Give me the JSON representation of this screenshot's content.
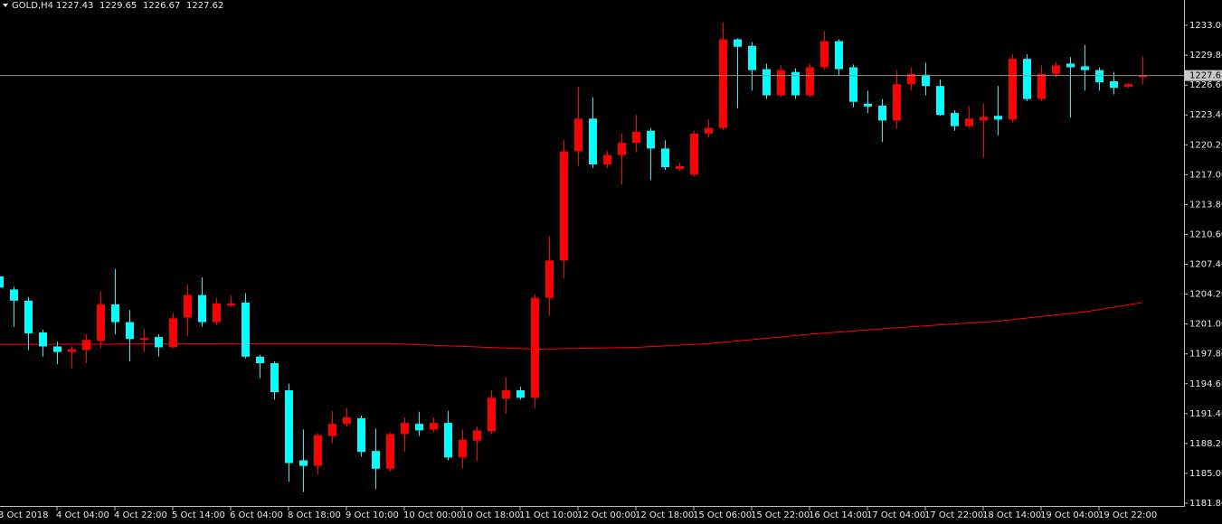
{
  "chart_data": {
    "type": "candlestick",
    "title": "GOLD,H4",
    "up_color": "#ff0000",
    "down_color": "#00ffff",
    "background": "#000000",
    "categories": [
      "3 Oct 2018",
      null,
      null,
      null,
      "4 Oct 04:00",
      null,
      null,
      null,
      "4 Oct 22:00",
      null,
      null,
      null,
      "5 Oct 14:00",
      null,
      null,
      null,
      "6 Oct 04:00",
      null,
      null,
      null,
      "8 Oct 18:00",
      null,
      null,
      null,
      "9 Oct 10:00",
      null,
      null,
      null,
      "10 Oct 00:00",
      null,
      null,
      null,
      "10 Oct 18:00",
      null,
      null,
      null,
      "11 Oct 10:00",
      null,
      null,
      null,
      "12 Oct 00:00",
      null,
      null,
      null,
      "12 Oct 18:00",
      null,
      null,
      null,
      "15 Oct 06:00",
      null,
      null,
      null,
      "15 Oct 22:00",
      null,
      null,
      null,
      "16 Oct 14:00",
      null,
      null,
      null,
      "17 Oct 04:00",
      null,
      null,
      null,
      "17 Oct 22:00",
      null,
      null,
      null,
      "18 Oct 14:00",
      null,
      null,
      null,
      "19 Oct 04:00",
      null,
      null,
      null,
      "19 Oct 22:00",
      null,
      null,
      null
    ],
    "open": [
      1206.1,
      1204.7,
      1203.5,
      1200.1,
      1198.6,
      1198.0,
      1198.2,
      1199.2,
      1203.1,
      1201.2,
      1199.3,
      1199.6,
      1198.5,
      1201.7,
      1204.1,
      1201.2,
      1203.0,
      1203.3,
      1197.5,
      1196.8,
      1193.9,
      1186.4,
      1185.8,
      1189.0,
      1190.3,
      1190.9,
      1187.4,
      1185.5,
      1189.2,
      1190.3,
      1189.7,
      1190.4,
      1186.7,
      1188.5,
      1189.5,
      1193.0,
      1193.9,
      1193.1,
      1203.8,
      1207.8,
      1219.5,
      1223.0,
      1218.1,
      1219.1,
      1220.4,
      1221.7,
      1219.8,
      1217.6,
      1217.0,
      1221.4,
      1222.0,
      1231.5,
      1230.8,
      1228.3,
      1225.5,
      1228.0,
      1225.5,
      1228.5,
      1231.3,
      1228.5,
      1224.6,
      1224.4,
      1222.8,
      1226.7,
      1227.7,
      1226.5,
      1223.6,
      1222.2,
      1222.8,
      1223.3,
      1222.9,
      1229.4,
      1225.1,
      1227.8,
      1228.9,
      1228.6,
      1228.2,
      1227.0,
      1226.4,
      1227.43
    ],
    "high": [
      1206.2,
      1205.0,
      1203.9,
      1200.4,
      1199.1,
      1198.6,
      1199.9,
      1204.5,
      1206.9,
      1202.5,
      1200.5,
      1199.9,
      1202.2,
      1205.2,
      1206.0,
      1203.8,
      1204.1,
      1204.3,
      1197.7,
      1197.0,
      1194.6,
      1189.7,
      1189.3,
      1191.7,
      1192.0,
      1191.2,
      1189.8,
      1189.4,
      1191.0,
      1191.6,
      1191.0,
      1191.7,
      1189.7,
      1190.0,
      1193.9,
      1195.3,
      1194.3,
      1204.2,
      1210.4,
      1220.7,
      1226.4,
      1225.3,
      1219.6,
      1221.4,
      1223.4,
      1222.0,
      1220.7,
      1218.3,
      1221.7,
      1222.9,
      1233.3,
      1231.6,
      1231.2,
      1228.9,
      1228.7,
      1228.4,
      1228.9,
      1232.4,
      1231.5,
      1228.8,
      1226.0,
      1225.1,
      1228.2,
      1228.5,
      1229.0,
      1227.2,
      1223.9,
      1224.3,
      1224.6,
      1226.5,
      1229.9,
      1229.9,
      1228.7,
      1229.1,
      1229.6,
      1230.9,
      1228.5,
      1228.0,
      1226.8,
      1229.65
    ],
    "low": [
      1204.5,
      1200.7,
      1198.2,
      1197.5,
      1196.7,
      1196.2,
      1196.8,
      1198.4,
      1199.9,
      1197.0,
      1198.0,
      1197.5,
      1198.4,
      1199.7,
      1200.7,
      1200.9,
      1202.8,
      1197.3,
      1195.2,
      1192.9,
      1184.1,
      1183.0,
      1184.9,
      1188.2,
      1190.0,
      1186.8,
      1183.3,
      1185.2,
      1187.3,
      1189.0,
      1189.4,
      1186.4,
      1185.5,
      1186.3,
      1189.2,
      1191.4,
      1192.9,
      1192.0,
      1201.9,
      1205.9,
      1217.9,
      1217.7,
      1217.7,
      1215.9,
      1219.4,
      1216.4,
      1217.5,
      1217.4,
      1216.8,
      1221.0,
      1221.8,
      1224.1,
      1226.0,
      1225.1,
      1225.3,
      1225.1,
      1225.3,
      1228.2,
      1227.6,
      1224.2,
      1223.6,
      1220.5,
      1221.9,
      1226.0,
      1225.5,
      1223.3,
      1221.7,
      1222.0,
      1218.8,
      1221.2,
      1222.6,
      1224.9,
      1224.9,
      1227.4,
      1223.1,
      1226.0,
      1226.0,
      1225.6,
      1226.3,
      1226.67
    ],
    "close": [
      1204.9,
      1203.5,
      1200.0,
      1198.6,
      1198.0,
      1198.3,
      1199.3,
      1203.1,
      1201.2,
      1199.4,
      1199.5,
      1198.5,
      1201.6,
      1204.1,
      1201.2,
      1203.2,
      1203.2,
      1197.5,
      1196.8,
      1193.7,
      1186.1,
      1185.8,
      1189.1,
      1190.3,
      1191.0,
      1187.3,
      1185.5,
      1189.2,
      1190.4,
      1189.6,
      1190.4,
      1186.7,
      1188.6,
      1189.6,
      1193.1,
      1193.9,
      1193.1,
      1203.8,
      1207.8,
      1219.5,
      1223.0,
      1218.1,
      1219.1,
      1220.4,
      1221.6,
      1219.8,
      1217.8,
      1217.9,
      1221.4,
      1222.0,
      1231.5,
      1230.7,
      1228.2,
      1225.5,
      1228.2,
      1225.5,
      1228.5,
      1231.3,
      1228.3,
      1224.8,
      1224.3,
      1222.8,
      1226.7,
      1227.8,
      1226.5,
      1223.4,
      1222.2,
      1223.0,
      1223.2,
      1222.9,
      1229.4,
      1225.1,
      1227.8,
      1228.7,
      1228.5,
      1228.2,
      1226.9,
      1226.3,
      1226.7,
      1227.62
    ],
    "ma": {
      "color": "#ff0000",
      "x": [
        0,
        17,
        27,
        37,
        44,
        49,
        56,
        62,
        69,
        75,
        79
      ],
      "values": [
        1198.8,
        1198.9,
        1198.9,
        1198.3,
        1198.5,
        1198.9,
        1199.9,
        1200.6,
        1201.3,
        1202.3,
        1203.3
      ]
    },
    "ylim": [
      1181.51,
      1235.71
    ],
    "yticks": [
      {
        "value": 1233,
        "label": "1233.00"
      },
      {
        "value": 1229.8,
        "label": "1229.80"
      },
      {
        "value": 1226.6,
        "label": "1226.60"
      },
      {
        "value": 1223.4,
        "label": "1223.40"
      },
      {
        "value": 1220.2,
        "label": "1220.20"
      },
      {
        "value": 1217,
        "label": "1217.00"
      },
      {
        "value": 1213.8,
        "label": "1213.80"
      },
      {
        "value": 1210.6,
        "label": "1210.60"
      },
      {
        "value": 1207.4,
        "label": "1207.40"
      },
      {
        "value": 1204.2,
        "label": "1204.20"
      },
      {
        "value": 1201,
        "label": "1201.00"
      },
      {
        "value": 1197.8,
        "label": "1197.80"
      },
      {
        "value": 1194.6,
        "label": "1194.60"
      },
      {
        "value": 1191.4,
        "label": "1191.40"
      },
      {
        "value": 1188.2,
        "label": "1188.20"
      },
      {
        "value": 1185,
        "label": "1185.00"
      },
      {
        "value": 1181.8,
        "label": "1181.80"
      }
    ],
    "grid": false
  }
}
